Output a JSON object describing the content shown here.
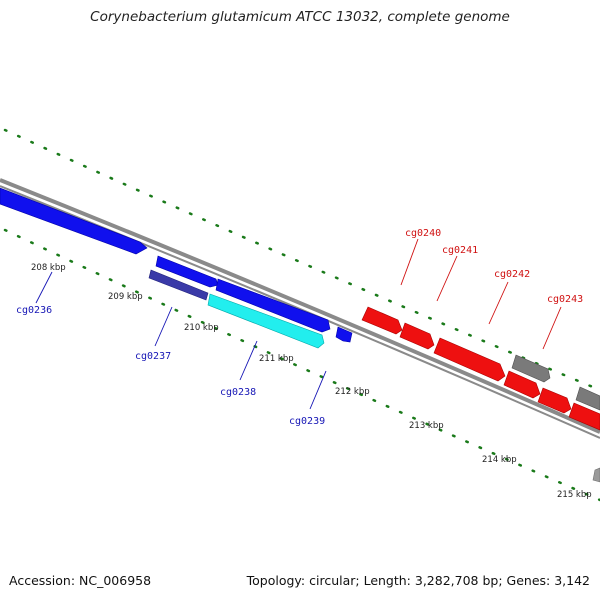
{
  "title": "Corynebacterium glutamicum ATCC 13032, complete genome",
  "footer": {
    "accession": "Accession: NC_006958",
    "summary": "Topology: circular; Length: 3,282,708 bp; Genes: 3,142"
  },
  "colors": {
    "forward_gene": "#1010ee",
    "reverse_gene": "#ee1010",
    "highlight_gene": "#22eeee",
    "other_feature": "#7a7a7a",
    "backbone": "#888888",
    "ticks": "#1a7a1a",
    "forward_label": "#1515b5",
    "reverse_label": "#d01010"
  },
  "scale_labels": [
    "208 kbp",
    "209 kbp",
    "210 kbp",
    "211 kbp",
    "212 kbp",
    "213 kbp",
    "214 kbp",
    "215 kbp"
  ],
  "forward_gene_labels": [
    "cg0236",
    "cg0237",
    "cg0238",
    "cg0239"
  ],
  "reverse_gene_labels": [
    "cg0240",
    "cg0241",
    "cg0242",
    "cg0243"
  ]
}
